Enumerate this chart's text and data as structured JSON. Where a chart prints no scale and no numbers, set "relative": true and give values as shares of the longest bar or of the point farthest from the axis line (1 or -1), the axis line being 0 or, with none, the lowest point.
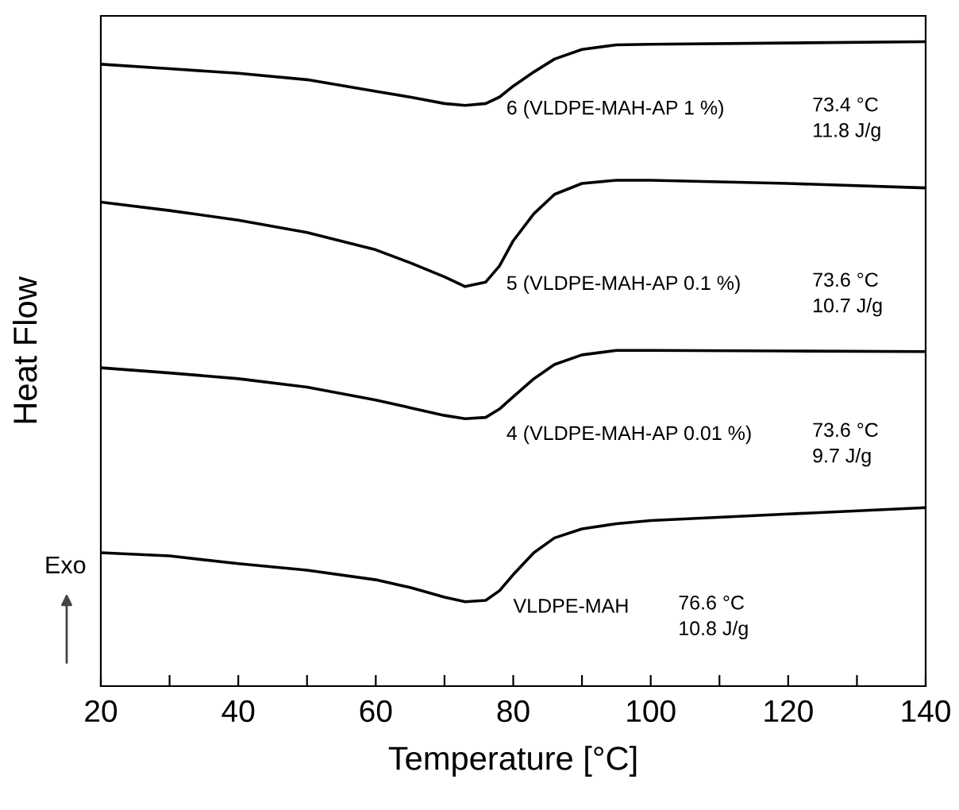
{
  "chart_data": {
    "type": "line",
    "relative": true,
    "xlabel": "Temperature [°C]",
    "ylabel": "Heat Flow",
    "tick_labels": "x",
    "grid": false,
    "legend": false,
    "marker": "none",
    "line_style": "solid",
    "x": [
      20,
      30,
      40,
      50,
      60,
      65,
      70,
      73,
      76,
      78,
      80,
      83,
      86,
      90,
      95,
      100,
      120,
      140
    ],
    "xlim": [
      20,
      140
    ],
    "xticks": [
      20,
      {
        "value": 30,
        "label": null
      },
      40,
      {
        "value": 50,
        "label": null
      },
      60,
      {
        "value": 70,
        "label": null
      },
      80,
      {
        "value": 90,
        "label": null
      },
      100,
      {
        "value": 110,
        "label": null
      },
      120,
      {
        "value": 130,
        "label": null
      },
      140
    ],
    "series": [
      {
        "name": "6 (VLDPE-MAH-AP 1 %)",
        "color": "#000000",
        "values": [
          0.965,
          0.958,
          0.951,
          0.941,
          0.923,
          0.914,
          0.904,
          0.901,
          0.904,
          0.914,
          0.931,
          0.953,
          0.973,
          0.988,
          0.995,
          0.996,
          0.998,
          1.0
        ]
      },
      {
        "name": "5 (VLDPE-MAH-AP 0.1 %)",
        "color": "#000000",
        "values": [
          0.751,
          0.738,
          0.723,
          0.704,
          0.677,
          0.657,
          0.635,
          0.62,
          0.627,
          0.652,
          0.691,
          0.733,
          0.763,
          0.78,
          0.785,
          0.785,
          0.78,
          0.773
        ]
      },
      {
        "name": "4 (VLDPE-MAH-AP 0.01 %)",
        "color": "#000000",
        "values": [
          0.494,
          0.486,
          0.477,
          0.464,
          0.444,
          0.432,
          0.42,
          0.415,
          0.417,
          0.43,
          0.449,
          0.477,
          0.499,
          0.514,
          0.521,
          0.521,
          0.52,
          0.519
        ]
      },
      {
        "name": "VLDPE-MAH",
        "color": "#000000",
        "values": [
          0.207,
          0.202,
          0.19,
          0.18,
          0.165,
          0.153,
          0.138,
          0.131,
          0.133,
          0.148,
          0.173,
          0.207,
          0.23,
          0.244,
          0.252,
          0.257,
          0.267,
          0.277
        ]
      }
    ],
    "annotations": [
      "73.4 °C\n11.8 J/g",
      "73.6 °C\n10.7 J/g",
      "73.6 °C\n9.7 J/g",
      "76.6 °C\n10.8 J/g",
      "Exo"
    ]
  }
}
